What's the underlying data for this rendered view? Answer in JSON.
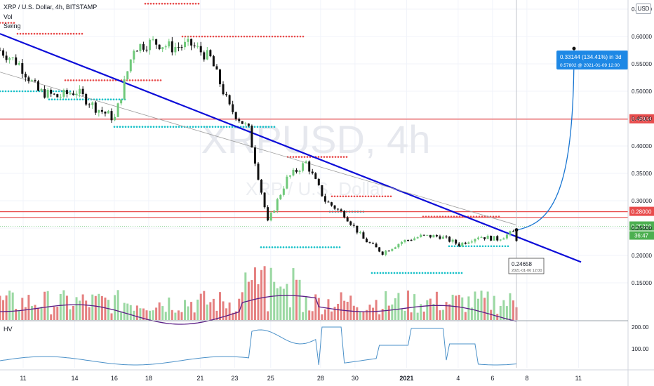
{
  "legend": {
    "title": "XRP / U.S. Dollar, 4h, BITSTAMP",
    "vol": "Vol",
    "swing": "Swing"
  },
  "watermark": {
    "symbol": "XRPUSD, 4h",
    "name": "XRP / U.S. Dollar"
  },
  "currency_button": "USD",
  "sub_pane_label": "HV",
  "colors": {
    "up": "#6fc97a",
    "down": "#e45656",
    "trend": "#0c0cd8",
    "level": "#e84c4c",
    "swing_high": "#e84c4c",
    "swing_low": "#17c1c8",
    "projection": "#1976d2",
    "vol_ma": "#5b1e86"
  },
  "chart_data": {
    "type": "line",
    "title": "XRP / U.S. Dollar, 4h, BITSTAMP",
    "price_axis": {
      "ticks": [
        "0.65000",
        "0.60000",
        "0.55000",
        "0.50000",
        "0.45000",
        "0.40000",
        "0.35000",
        "0.30000",
        "0.25000",
        "0.20000",
        "0.15000"
      ],
      "range": [
        0.128,
        0.68
      ]
    },
    "x_ticks": [
      "11",
      "14",
      "16",
      "18",
      "21",
      "23",
      "25",
      "28",
      "30",
      "2021",
      "4",
      "6",
      "8",
      "11"
    ],
    "price_series": {
      "name": "XRPUSD",
      "x": [
        "Dec 10",
        "Dec 11",
        "Dec 12",
        "Dec 13",
        "Dec 14",
        "Dec 15",
        "Dec 16",
        "Dec 17",
        "Dec 18",
        "Dec 19",
        "Dec 20",
        "Dec 21",
        "Dec 22",
        "Dec 23",
        "Dec 24",
        "Dec 25",
        "Dec 26",
        "Dec 27",
        "Dec 28",
        "Dec 29",
        "Dec 30",
        "Dec 31",
        "Jan 1",
        "Jan 2",
        "Jan 3",
        "Jan 4",
        "Jan 5",
        "Jan 6"
      ],
      "close": [
        0.575,
        0.55,
        0.5,
        0.49,
        0.5,
        0.47,
        0.45,
        0.58,
        0.59,
        0.58,
        0.585,
        0.56,
        0.47,
        0.43,
        0.26,
        0.34,
        0.37,
        0.3,
        0.275,
        0.23,
        0.205,
        0.225,
        0.235,
        0.235,
        0.22,
        0.235,
        0.23,
        0.245
      ]
    },
    "horizontal_levels": [
      {
        "label": "0.44904",
        "value": 0.44904
      },
      {
        "label": "0.28000",
        "value": 0.28
      },
      {
        "label": "0.25319",
        "value": 0.25319
      }
    ],
    "price_badge_extra": "36:47",
    "hv_axis": {
      "ticks": [
        "200.00",
        "100.00"
      ]
    },
    "projection": {
      "line1": "0.33144 (134.41%) in 3d",
      "line2": "0.57802 @ 2021-01-09 12:00",
      "from_value": 0.24658,
      "to_value": 0.57802
    },
    "start_label": {
      "value": "0.24658",
      "date": "2021-01-06 12:00"
    }
  }
}
